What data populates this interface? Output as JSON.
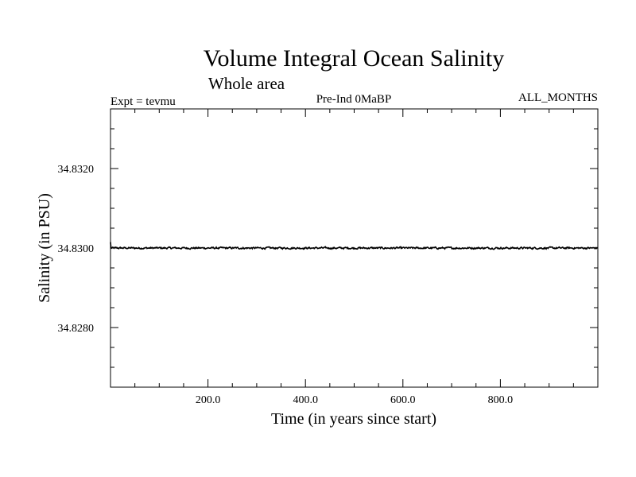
{
  "chart_data": {
    "type": "line",
    "title": "Volume Integral Ocean Salinity",
    "subtitle": "Whole area",
    "annotations": {
      "left": "Expt = tevmu",
      "center": "Pre-Ind 0MaBP",
      "right": "ALL_MONTHS"
    },
    "xlabel": "Time (in years since start)",
    "ylabel": "Salinity (in PSU)",
    "xlim": [
      0,
      1000
    ],
    "ylim": [
      34.8265,
      34.8335
    ],
    "x_ticks": [
      200,
      400,
      600,
      800
    ],
    "x_tick_labels": [
      "200.0",
      "400.0",
      "600.0",
      "800.0"
    ],
    "x_minor_step": 50,
    "y_ticks": [
      34.828,
      34.83,
      34.832
    ],
    "y_tick_labels": [
      "34.8280",
      "34.8300",
      "34.8320"
    ],
    "y_minor_step": 0.0005,
    "grid": false,
    "series": [
      {
        "name": "Salinity",
        "description": "Annual-mean volume integral salinity, essentially flat near 34.8300 PSU with small fluctuations (about ±0.00005)",
        "start": 34.83015,
        "mean": 34.83,
        "noise_amplitude": 4e-05,
        "x_start": 0,
        "x_end": 1000,
        "x_step": 1
      }
    ],
    "colors": {
      "line": "#000000",
      "axes": "#000000",
      "background": "#ffffff"
    }
  }
}
